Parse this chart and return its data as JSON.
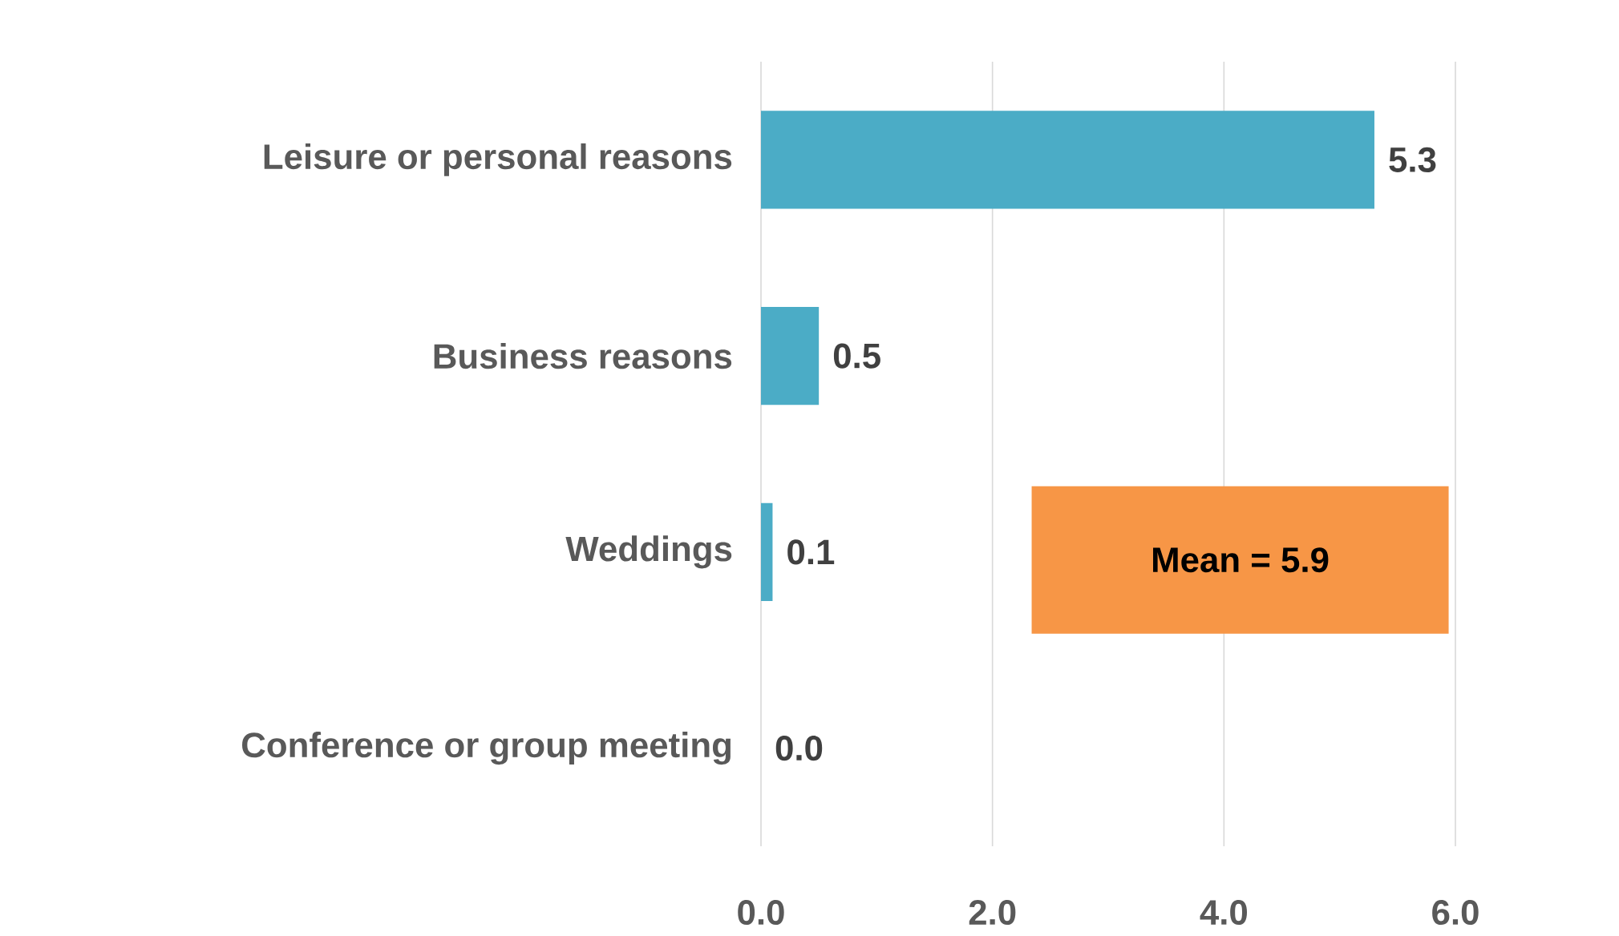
{
  "chart_data": {
    "type": "bar",
    "orientation": "horizontal",
    "categories": [
      "Leisure or personal reasons",
      "Business reasons",
      "Weddings",
      "Conference or group meeting"
    ],
    "values": [
      5.3,
      0.5,
      0.1,
      0
    ],
    "value_labels": [
      "5.3",
      "0.5",
      "0.1",
      "0.0"
    ],
    "color": "#4bacc6",
    "xlim": [
      0,
      6
    ],
    "xticks": [
      {
        "value": 0,
        "label": "0.0"
      },
      {
        "value": 2,
        "label": "2.0"
      },
      {
        "value": 4,
        "label": "4.0"
      },
      {
        "value": 6,
        "label": "6.0"
      }
    ],
    "grid": "x",
    "annotations": [
      "Mean = 5.9"
    ]
  }
}
